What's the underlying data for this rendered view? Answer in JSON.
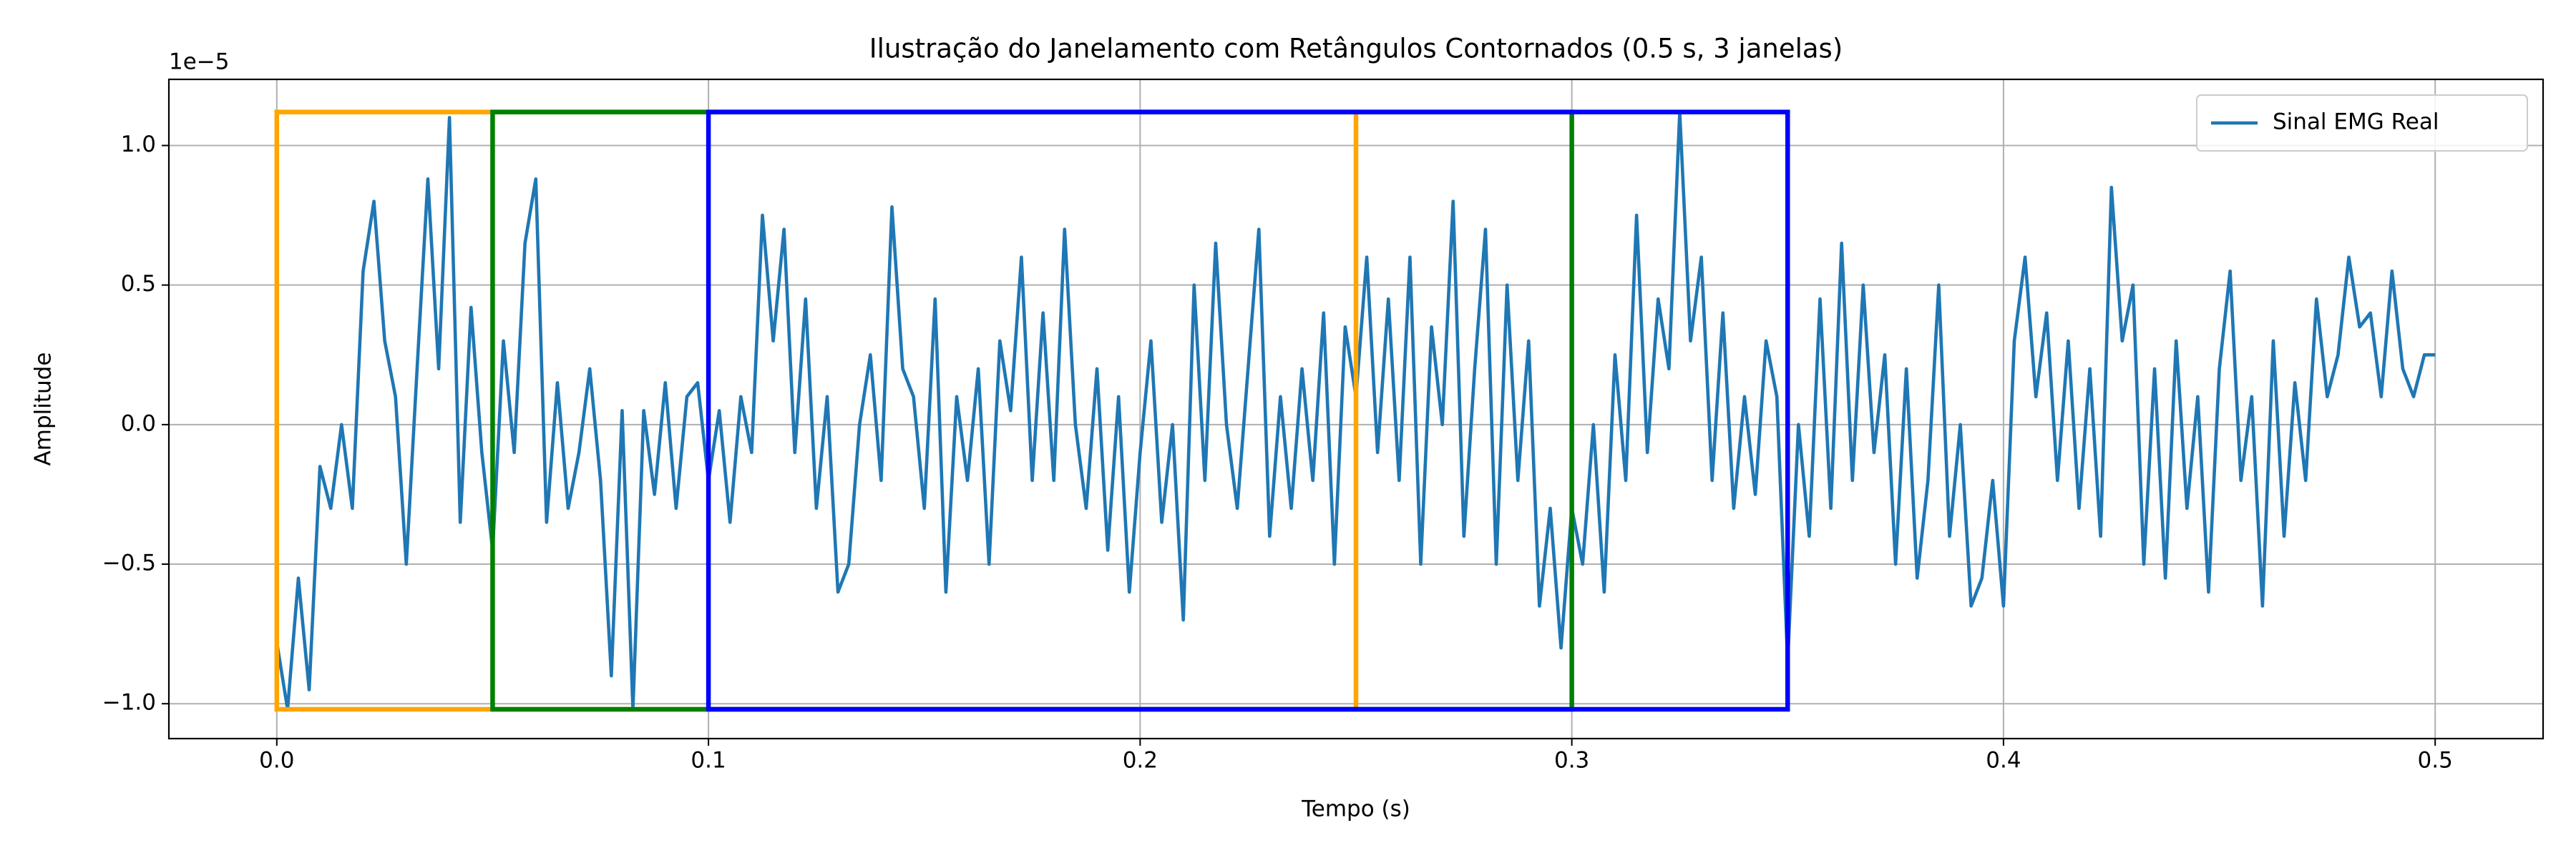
{
  "chart_data": {
    "type": "line",
    "title": "Ilustração do Janelamento com Retângulos Contornados (0.5 s, 3 janelas)",
    "xlabel": "Tempo (s)",
    "ylabel": "Amplitude",
    "y_offset_label": "1e−5",
    "xlim": [
      -0.025,
      0.525
    ],
    "ylim": [
      -1.125,
      1.237
    ],
    "xticks": [
      {
        "value": 0,
        "label": "0.0"
      },
      0.1,
      0.2,
      0.3,
      0.4,
      0.5
    ],
    "yticks": [
      {
        "value": -1,
        "label": "−1.0"
      },
      {
        "value": -0.5,
        "label": "−0.5"
      },
      {
        "value": 0,
        "label": "0.0"
      },
      0.5,
      {
        "value": 1,
        "label": "1.0"
      }
    ],
    "grid": true,
    "legend": "upper right",
    "x": [
      0,
      0.0025,
      0.005,
      0.0075,
      0.01,
      0.0125,
      0.015,
      0.0175,
      0.02,
      0.0225,
      0.025,
      0.0275,
      0.03,
      0.0325,
      0.035,
      0.0375,
      0.04,
      0.0425,
      0.045,
      0.0475,
      0.05,
      0.0525,
      0.055,
      0.0575,
      0.06,
      0.0625,
      0.065,
      0.0675,
      0.07,
      0.0725,
      0.075,
      0.0775,
      0.08,
      0.0825,
      0.085,
      0.0875,
      0.09,
      0.0925,
      0.095,
      0.0975,
      0.1,
      0.1025,
      0.105,
      0.1075,
      0.11,
      0.1125,
      0.115,
      0.1175,
      0.12,
      0.1225,
      0.125,
      0.1275,
      0.13,
      0.1325,
      0.135,
      0.1375,
      0.14,
      0.1425,
      0.145,
      0.1475,
      0.15,
      0.1525,
      0.155,
      0.1575,
      0.16,
      0.1625,
      0.165,
      0.1675,
      0.17,
      0.1725,
      0.175,
      0.1775,
      0.18,
      0.1825,
      0.185,
      0.1875,
      0.19,
      0.1925,
      0.195,
      0.1975,
      0.2,
      0.2025,
      0.205,
      0.2075,
      0.21,
      0.2125,
      0.215,
      0.2175,
      0.22,
      0.2225,
      0.225,
      0.2275,
      0.23,
      0.2325,
      0.235,
      0.2375,
      0.24,
      0.2425,
      0.245,
      0.2475,
      0.25,
      0.2525,
      0.255,
      0.2575,
      0.26,
      0.2625,
      0.265,
      0.2675,
      0.27,
      0.2725,
      0.275,
      0.2775,
      0.28,
      0.2825,
      0.285,
      0.2875,
      0.29,
      0.2925,
      0.295,
      0.2975,
      0.3,
      0.3025,
      0.305,
      0.3075,
      0.31,
      0.3125,
      0.315,
      0.3175,
      0.32,
      0.3225,
      0.325,
      0.3275,
      0.33,
      0.3325,
      0.335,
      0.3375,
      0.34,
      0.3425,
      0.345,
      0.3475,
      0.35,
      0.3525,
      0.355,
      0.3575,
      0.36,
      0.3625,
      0.365,
      0.3675,
      0.37,
      0.3725,
      0.375,
      0.3775,
      0.38,
      0.3825,
      0.385,
      0.3875,
      0.39,
      0.3925,
      0.395,
      0.3975,
      0.4,
      0.4025,
      0.405,
      0.4075,
      0.41,
      0.4125,
      0.415,
      0.4175,
      0.42,
      0.4225,
      0.425,
      0.4275,
      0.43,
      0.4325,
      0.435,
      0.4375,
      0.44,
      0.4425,
      0.445,
      0.4475,
      0.45,
      0.4525,
      0.455,
      0.4575,
      0.46,
      0.4625,
      0.465,
      0.4675,
      0.47,
      0.4725,
      0.475,
      0.4775,
      0.48,
      0.4825,
      0.485,
      0.4875,
      0.49,
      0.4925,
      0.495,
      0.4975,
      0.5
    ],
    "series": [
      {
        "name": "Sinal EMG Real",
        "color": "#1f77b4",
        "values": [
          -0.78,
          -1.02,
          -0.55,
          -0.95,
          -0.15,
          -0.3,
          0.0,
          -0.3,
          0.55,
          0.8,
          0.3,
          0.1,
          -0.5,
          0.2,
          0.88,
          0.2,
          1.1,
          -0.35,
          0.42,
          -0.1,
          -0.45,
          0.3,
          -0.1,
          0.65,
          0.88,
          -0.35,
          0.15,
          -0.3,
          -0.1,
          0.2,
          -0.2,
          -0.9,
          0.05,
          -1.02,
          0.05,
          -0.25,
          0.15,
          -0.3,
          0.1,
          0.15,
          -0.2,
          0.05,
          -0.35,
          0.1,
          -0.1,
          0.75,
          0.3,
          0.7,
          -0.1,
          0.45,
          -0.3,
          0.1,
          -0.6,
          -0.5,
          0.0,
          0.25,
          -0.2,
          0.78,
          0.2,
          0.1,
          -0.3,
          0.45,
          -0.6,
          0.1,
          -0.2,
          0.2,
          -0.5,
          0.3,
          0.05,
          0.6,
          -0.2,
          0.4,
          -0.2,
          0.7,
          0.0,
          -0.3,
          0.2,
          -0.45,
          0.1,
          -0.6,
          -0.1,
          0.3,
          -0.35,
          0.0,
          -0.7,
          0.5,
          -0.2,
          0.65,
          0.0,
          -0.3,
          0.2,
          0.7,
          -0.4,
          0.1,
          -0.3,
          0.2,
          -0.2,
          0.4,
          -0.5,
          0.35,
          0.1,
          0.6,
          -0.1,
          0.45,
          -0.2,
          0.6,
          -0.5,
          0.35,
          0.0,
          0.8,
          -0.4,
          0.2,
          0.7,
          -0.5,
          0.5,
          -0.2,
          0.3,
          -0.65,
          -0.3,
          -0.8,
          -0.3,
          -0.5,
          0.0,
          -0.6,
          0.25,
          -0.2,
          0.75,
          -0.1,
          0.45,
          0.2,
          1.12,
          0.3,
          0.6,
          -0.2,
          0.4,
          -0.3,
          0.1,
          -0.25,
          0.3,
          0.1,
          -0.85,
          0.0,
          -0.4,
          0.45,
          -0.3,
          0.65,
          -0.2,
          0.5,
          -0.1,
          0.25,
          -0.5,
          0.2,
          -0.55,
          -0.2,
          0.5,
          -0.4,
          0.0,
          -0.65,
          -0.55,
          -0.2,
          -0.65,
          0.3,
          0.6,
          0.1,
          0.4,
          -0.2,
          0.3,
          -0.3,
          0.2,
          -0.4,
          0.85,
          0.3,
          0.5,
          -0.5,
          0.2,
          -0.55,
          0.3,
          -0.3,
          0.1,
          -0.6,
          0.2,
          0.55,
          -0.2,
          0.1,
          -0.65,
          0.3,
          -0.4,
          0.15,
          -0.2,
          0.45,
          0.1,
          0.25,
          0.6,
          0.35,
          0.4,
          0.1,
          0.55,
          0.2,
          0.1,
          0.25,
          0.25
        ]
      }
    ],
    "windows": [
      {
        "start": 0,
        "end": 0.25,
        "bottom": -1.02,
        "top": 1.12,
        "color": "#ffa500"
      },
      {
        "start": 0.05,
        "end": 0.3,
        "bottom": -1.02,
        "top": 1.12,
        "color": "#008000"
      },
      {
        "start": 0.1,
        "end": 0.35,
        "bottom": -1.02,
        "top": 1.12,
        "color": "#0000ff"
      }
    ]
  }
}
